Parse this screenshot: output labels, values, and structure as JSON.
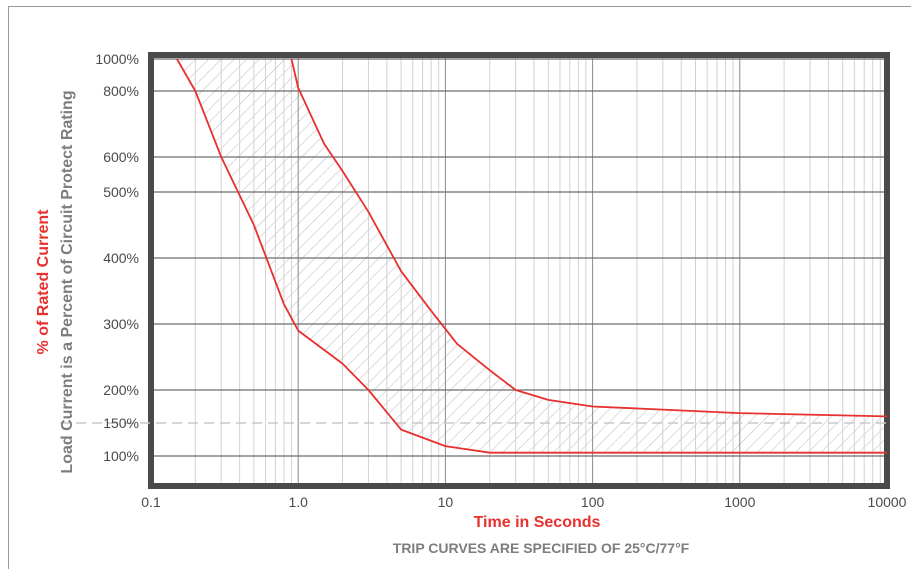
{
  "chart_data": {
    "type": "line",
    "title": "",
    "xlabel": "Time in Seconds",
    "subtitle": "TRIP CURVES ARE SPECIFIED OF 25°C/77°F",
    "ylabel_primary": "% of Rated Current",
    "ylabel_secondary": "Load Current is a Percent of Circuit Protect Rating",
    "x_scale": "log",
    "xlim": [
      0.1,
      10000
    ],
    "x_ticks": [
      {
        "value": 0.1,
        "label": "0.1"
      },
      {
        "value": 1,
        "label": "1.0"
      },
      {
        "value": 10,
        "label": "10"
      },
      {
        "value": 100,
        "label": "100"
      },
      {
        "value": 1000,
        "label": "1000"
      },
      {
        "value": 10000,
        "label": "10000"
      }
    ],
    "y_ticks": [
      {
        "value": 1000,
        "label": "1000%"
      },
      {
        "value": 800,
        "label": "800%"
      },
      {
        "value": 600,
        "label": "600%"
      },
      {
        "value": 500,
        "label": "500%"
      },
      {
        "value": 400,
        "label": "400%"
      },
      {
        "value": 300,
        "label": "300%"
      },
      {
        "value": 200,
        "label": "200%"
      },
      {
        "value": 150,
        "label": "150%"
      },
      {
        "value": 100,
        "label": "100%"
      }
    ],
    "y_scale_note": "nonlinear tick spacing",
    "reference_line": {
      "y": 150,
      "style": "dashed"
    },
    "grid": true,
    "series": [
      {
        "role": "lower-bound",
        "color": "#e8302e",
        "points": [
          [
            0.15,
            1000
          ],
          [
            0.2,
            800
          ],
          [
            0.3,
            600
          ],
          [
            0.5,
            450
          ],
          [
            0.8,
            330
          ],
          [
            1.0,
            290
          ],
          [
            2.0,
            240
          ],
          [
            3.0,
            200
          ],
          [
            5.0,
            140
          ],
          [
            10,
            115
          ],
          [
            20,
            105
          ],
          [
            100,
            105
          ],
          [
            1000,
            105
          ],
          [
            10000,
            105
          ]
        ]
      },
      {
        "role": "upper-bound",
        "color": "#e8302e",
        "points": [
          [
            0.9,
            1000
          ],
          [
            1.0,
            820
          ],
          [
            1.5,
            640
          ],
          [
            2.0,
            560
          ],
          [
            3.0,
            470
          ],
          [
            5.0,
            380
          ],
          [
            8.0,
            320
          ],
          [
            12,
            270
          ],
          [
            20,
            230
          ],
          [
            30,
            200
          ],
          [
            50,
            185
          ],
          [
            100,
            175
          ],
          [
            1000,
            165
          ],
          [
            10000,
            160
          ]
        ]
      }
    ],
    "band_fill": "hatched",
    "colors": {
      "curve": "#e8302e",
      "frame": "#4a4a4a",
      "grid": "#8a8a8a",
      "hatch": "#c4c4c4"
    }
  }
}
